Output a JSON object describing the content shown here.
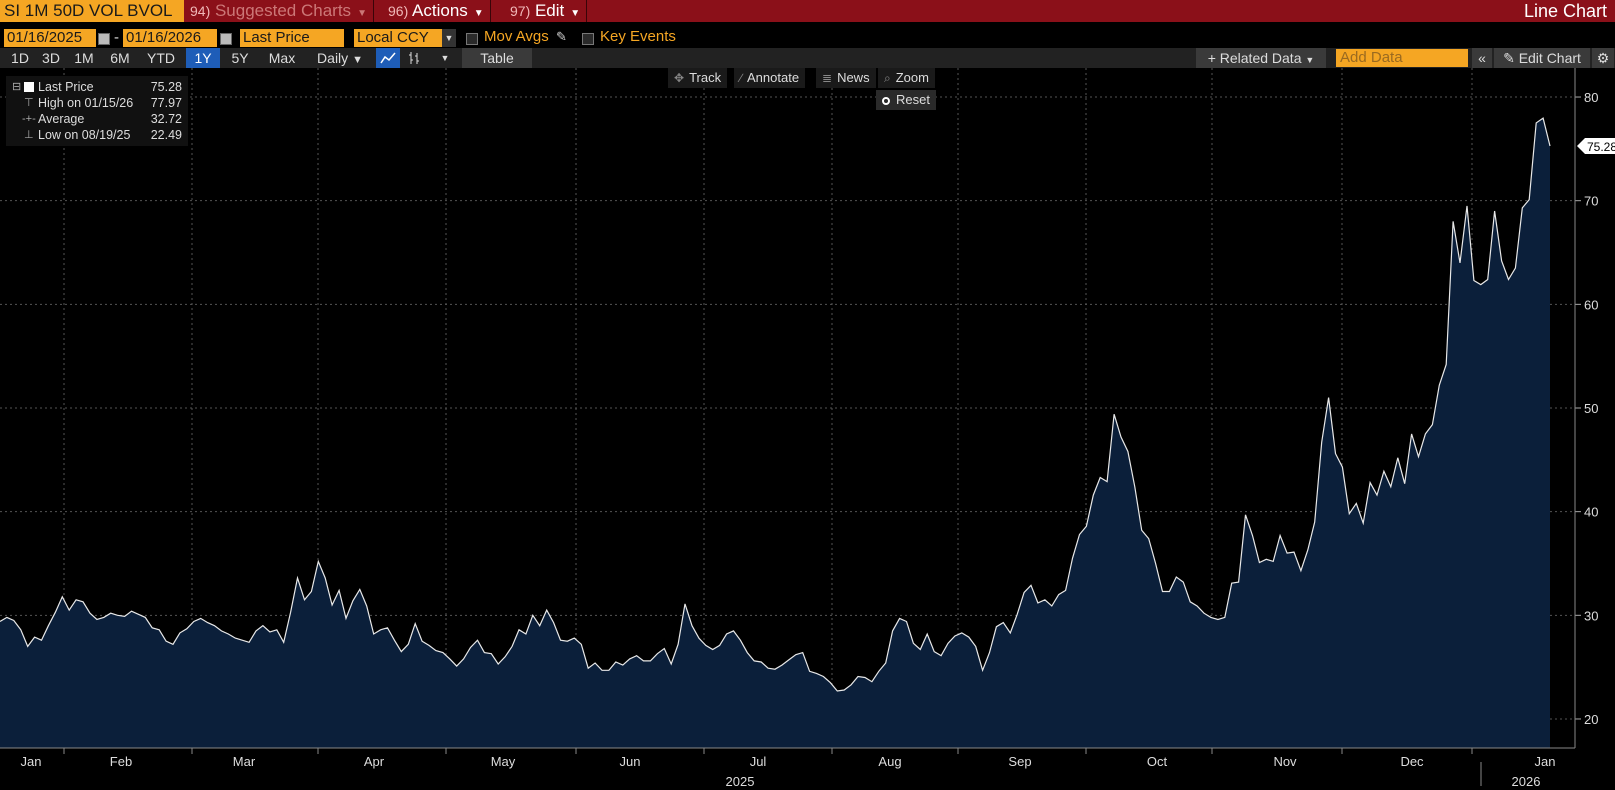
{
  "topbar": {
    "ticker": "SI 1M 50D VOL BVOL",
    "menus": [
      {
        "num": "94)",
        "label": "Suggested Charts"
      },
      {
        "num": "96)",
        "label": "Actions"
      },
      {
        "num": "97)",
        "label": "Edit"
      }
    ],
    "chart_type": "Line Chart"
  },
  "controls": {
    "start_date": "01/16/2025",
    "date_sep": "-",
    "end_date": "01/16/2026",
    "field": "Last Price",
    "currency": "Local CCY",
    "mov_avgs": "Mov Avgs",
    "key_events": "Key Events"
  },
  "ranges": [
    "1D",
    "3D",
    "1M",
    "6M",
    "YTD",
    "1Y",
    "5Y",
    "Max"
  ],
  "active_range": "1Y",
  "frequency": "Daily",
  "table_label": "Table",
  "related_data": "Related Data",
  "add_data_placeholder": "Add Data",
  "edit_chart": "Edit Chart",
  "plot_tools": {
    "track": "Track",
    "annotate": "Annotate",
    "news": "News",
    "zoom": "Zoom",
    "reset": "Reset"
  },
  "legend": {
    "last_label": "Last Price",
    "last_value": "75.28",
    "high_label": "High on 01/15/26",
    "high_value": "77.97",
    "avg_label": "Average",
    "avg_value": "32.72",
    "low_label": "Low on 08/19/25",
    "low_value": "22.49"
  },
  "colors": {
    "line": "#e8e8e8",
    "area": "#0b1f3a",
    "accent": "#f5a623",
    "topbar": "#8b1019",
    "grid": "#555555"
  },
  "chart_data": {
    "type": "area",
    "series": [
      {
        "values": [
          29.4,
          29.8,
          29.5,
          28.6,
          27.0,
          27.9,
          27.6,
          29.0,
          30.3,
          31.8,
          30.5,
          31.5,
          31.3,
          30.2,
          29.6,
          29.8,
          30.2,
          30.0,
          29.9,
          30.4,
          30.1,
          29.8,
          28.8,
          28.6,
          27.5,
          27.2,
          28.3,
          28.7,
          29.4,
          29.7,
          29.3,
          29.0,
          28.5,
          28.2,
          27.8,
          27.6,
          27.4,
          28.5,
          29.0,
          28.4,
          28.6,
          27.4,
          30.3,
          33.6,
          31.5,
          32.3,
          35.2,
          33.6,
          31.0,
          32.4,
          29.7,
          31.4,
          32.5,
          30.9,
          28.2,
          28.6,
          28.8,
          27.6,
          26.5,
          27.2,
          29.2,
          27.5,
          27.1,
          26.6,
          26.4,
          25.8,
          25.1,
          25.8,
          26.9,
          27.6,
          26.4,
          26.3,
          25.3,
          26.0,
          27.0,
          28.6,
          28.2,
          30.0,
          29.0,
          30.5,
          29.3,
          27.6,
          27.5,
          27.8,
          27.2,
          24.9,
          25.4,
          24.7,
          24.7,
          25.5,
          25.2,
          25.8,
          26.1,
          25.6,
          25.6,
          26.3,
          26.8,
          25.3,
          27.2,
          31.1,
          29.0,
          27.8,
          27.1,
          26.7,
          27.1,
          28.2,
          28.5,
          27.6,
          26.4,
          25.6,
          25.5,
          24.9,
          24.8,
          25.2,
          25.7,
          26.2,
          26.4,
          24.6,
          24.4,
          24.1,
          23.5,
          22.7,
          22.8,
          23.3,
          24.1,
          24.0,
          23.6,
          24.6,
          25.4,
          28.5,
          29.7,
          29.4,
          27.3,
          26.7,
          28.2,
          26.5,
          26.1,
          27.3,
          28.0,
          28.3,
          27.9,
          27.0,
          24.7,
          26.4,
          28.9,
          29.3,
          28.3,
          30.1,
          32.2,
          32.9,
          31.2,
          31.5,
          30.9,
          32.0,
          32.4,
          35.5,
          37.8,
          38.6,
          41.6,
          43.3,
          42.9,
          49.4,
          47.2,
          45.8,
          42.4,
          38.2,
          37.4,
          35.0,
          32.3,
          32.3,
          33.7,
          33.2,
          31.3,
          30.9,
          30.2,
          29.8,
          29.6,
          29.8,
          33.1,
          33.2,
          39.7,
          37.7,
          35.1,
          35.4,
          35.2,
          37.7,
          36.0,
          36.1,
          34.3,
          36.3,
          39.0,
          46.7,
          51.0,
          45.6,
          44.3,
          39.8,
          40.8,
          38.9,
          42.8,
          41.6,
          43.9,
          42.4,
          45.2,
          42.7,
          47.5,
          45.3,
          47.5,
          48.4,
          52.2,
          54.2,
          68.0,
          64.0,
          69.5,
          62.3,
          61.9,
          62.4,
          69.0,
          64.2,
          62.4,
          63.5,
          69.3,
          70.1,
          77.5,
          77.97,
          75.28
        ]
      }
    ],
    "x_labels": [
      "Jan",
      "Feb",
      "Mar",
      "Apr",
      "May",
      "Jun",
      "Jul",
      "Aug",
      "Sep",
      "Oct",
      "Nov",
      "Dec",
      "Jan"
    ],
    "year_labels": [
      "2025",
      "2026"
    ],
    "y_ticks": [
      20,
      30,
      40,
      50,
      60,
      70,
      80
    ],
    "ylim": [
      17.2,
      82.8
    ],
    "last_value": "75.28",
    "axis_side": "right",
    "grid": true
  }
}
